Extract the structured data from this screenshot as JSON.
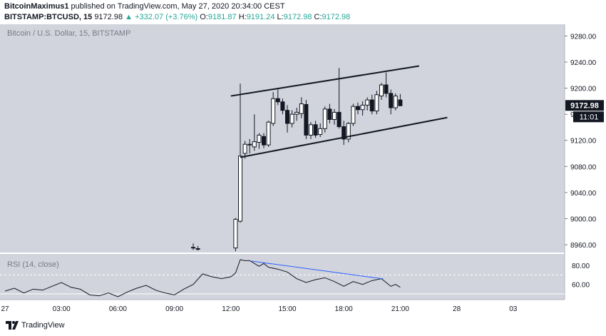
{
  "header": {
    "author": "BitcoinMaximus1",
    "published_text": "published on TradingView.com, May 27, 2020 20:34:00 CEST",
    "symbol": "BITSTAMP:BTCUSD, 15",
    "last_price": "9172.98",
    "change": "+332.07 (+3.76%)",
    "open_label": "O:",
    "open": "9181.87",
    "high_label": "H:",
    "high": "9191.24",
    "low_label": "L:",
    "low": "9172.98",
    "close_label": "C:",
    "close": "9172.98"
  },
  "footer": {
    "brand": "TradingView"
  },
  "colors": {
    "panel_bg": "#d1d4dc",
    "price_badge": "#131722",
    "divergence": "#2962ff",
    "rsi_line": "#131722"
  },
  "chart_data": [
    {
      "type": "candlestick",
      "title": "Bitcoin / U.S. Dollar, 15, BITSTAMP",
      "y_ticks": [
        "9280.00",
        "9240.00",
        "9200.00",
        "9160.00",
        "9120.00",
        "9080.00",
        "9040.00",
        "9000.00",
        "8960.00"
      ],
      "ylim": [
        8948,
        9298
      ],
      "price_label": "9172.98",
      "countdown_label": "11:01",
      "x_ticks": [
        "27",
        "03:00",
        "06:00",
        "09:00",
        "12:00",
        "15:00",
        "18:00",
        "21:00",
        "28",
        "03"
      ],
      "x_tick_hours": [
        0,
        3,
        6,
        9,
        12,
        15,
        18,
        21,
        24,
        27
      ],
      "candles": [
        {
          "t": 10.0,
          "o": 8956,
          "h": 8962,
          "l": 8952,
          "c": 8955
        },
        {
          "t": 10.25,
          "o": 8954,
          "h": 8958,
          "l": 8951,
          "c": 8953
        },
        {
          "t": 12.25,
          "o": 8955,
          "h": 9001,
          "l": 8950,
          "c": 8999
        },
        {
          "t": 12.5,
          "o": 8996,
          "h": 9207,
          "l": 8994,
          "c": 9096
        },
        {
          "t": 12.75,
          "o": 9100,
          "h": 9119,
          "l": 9092,
          "c": 9114
        },
        {
          "t": 13.0,
          "o": 9114,
          "h": 9122,
          "l": 9100,
          "c": 9113
        },
        {
          "t": 13.25,
          "o": 9110,
          "h": 9160,
          "l": 9104,
          "c": 9118
        },
        {
          "t": 13.5,
          "o": 9117,
          "h": 9131,
          "l": 9107,
          "c": 9128
        },
        {
          "t": 13.75,
          "o": 9126,
          "h": 9131,
          "l": 9108,
          "c": 9113
        },
        {
          "t": 14.0,
          "o": 9113,
          "h": 9150,
          "l": 9110,
          "c": 9148
        },
        {
          "t": 14.25,
          "o": 9146,
          "h": 9194,
          "l": 9142,
          "c": 9184
        },
        {
          "t": 14.5,
          "o": 9184,
          "h": 9198,
          "l": 9174,
          "c": 9179
        },
        {
          "t": 14.75,
          "o": 9179,
          "h": 9184,
          "l": 9160,
          "c": 9166
        },
        {
          "t": 15.0,
          "o": 9166,
          "h": 9174,
          "l": 9132,
          "c": 9146
        },
        {
          "t": 15.25,
          "o": 9146,
          "h": 9166,
          "l": 9140,
          "c": 9160
        },
        {
          "t": 15.5,
          "o": 9160,
          "h": 9170,
          "l": 9150,
          "c": 9163
        },
        {
          "t": 15.75,
          "o": 9161,
          "h": 9186,
          "l": 9154,
          "c": 9176
        },
        {
          "t": 16.0,
          "o": 9175,
          "h": 9182,
          "l": 9122,
          "c": 9128
        },
        {
          "t": 16.25,
          "o": 9128,
          "h": 9148,
          "l": 9122,
          "c": 9144
        },
        {
          "t": 16.5,
          "o": 9144,
          "h": 9150,
          "l": 9124,
          "c": 9128
        },
        {
          "t": 16.75,
          "o": 9129,
          "h": 9146,
          "l": 9125,
          "c": 9138
        },
        {
          "t": 17.0,
          "o": 9138,
          "h": 9172,
          "l": 9132,
          "c": 9168
        },
        {
          "t": 17.25,
          "o": 9168,
          "h": 9176,
          "l": 9146,
          "c": 9152
        },
        {
          "t": 17.5,
          "o": 9152,
          "h": 9168,
          "l": 9144,
          "c": 9163
        },
        {
          "t": 17.75,
          "o": 9163,
          "h": 9231,
          "l": 9138,
          "c": 9141
        },
        {
          "t": 18.0,
          "o": 9141,
          "h": 9150,
          "l": 9113,
          "c": 9122
        },
        {
          "t": 18.25,
          "o": 9122,
          "h": 9148,
          "l": 9117,
          "c": 9146
        },
        {
          "t": 18.5,
          "o": 9146,
          "h": 9176,
          "l": 9142,
          "c": 9172
        },
        {
          "t": 18.75,
          "o": 9172,
          "h": 9178,
          "l": 9160,
          "c": 9167
        },
        {
          "t": 19.0,
          "o": 9167,
          "h": 9180,
          "l": 9158,
          "c": 9174
        },
        {
          "t": 19.25,
          "o": 9174,
          "h": 9186,
          "l": 9166,
          "c": 9182
        },
        {
          "t": 19.5,
          "o": 9182,
          "h": 9190,
          "l": 9160,
          "c": 9165
        },
        {
          "t": 19.75,
          "o": 9165,
          "h": 9196,
          "l": 9160,
          "c": 9190
        },
        {
          "t": 20.0,
          "o": 9188,
          "h": 9208,
          "l": 9182,
          "c": 9205
        },
        {
          "t": 20.25,
          "o": 9205,
          "h": 9224,
          "l": 9186,
          "c": 9192
        },
        {
          "t": 20.5,
          "o": 9192,
          "h": 9198,
          "l": 9160,
          "c": 9170
        },
        {
          "t": 20.75,
          "o": 9170,
          "h": 9192,
          "l": 9166,
          "c": 9188
        },
        {
          "t": 21.0,
          "o": 9182,
          "h": 9191,
          "l": 9173,
          "c": 9173
        }
      ],
      "channel": [
        {
          "t1": 12.0,
          "p1": 9188,
          "t2": 22.0,
          "p2": 9234
        },
        {
          "t1": 12.5,
          "p1": 9094,
          "t2": 23.5,
          "p2": 9155
        }
      ]
    },
    {
      "type": "line",
      "title": "RSI (14, close)",
      "y_ticks": [
        "80.00",
        "60.00"
      ],
      "ylim": [
        44,
        92
      ],
      "levels": [
        70,
        50
      ],
      "x": [
        0,
        0.5,
        1,
        1.5,
        2,
        2.5,
        3,
        3.5,
        4,
        4.5,
        5,
        5.5,
        6,
        6.5,
        7,
        7.5,
        8,
        8.5,
        9,
        9.5,
        10,
        10.5,
        11,
        11.5,
        12,
        12.25,
        12.5,
        12.75,
        13,
        13.25,
        13.5,
        13.75,
        14,
        14.5,
        15,
        15.5,
        16,
        16.5,
        17,
        17.5,
        18,
        18.5,
        19,
        19.5,
        20,
        20.25,
        20.5,
        20.75,
        21
      ],
      "values": [
        53,
        56,
        51,
        55,
        54,
        58,
        62,
        57,
        55,
        49,
        48,
        51,
        47,
        52,
        56,
        59,
        54,
        51,
        49,
        55,
        60,
        71,
        68,
        66,
        68,
        72,
        86,
        85,
        85,
        82,
        79,
        82,
        78,
        76,
        73,
        66,
        62,
        65,
        67,
        63,
        58,
        63,
        60,
        64,
        66,
        62,
        58,
        60,
        57
      ],
      "divergence": {
        "x1": 13.1,
        "y1": 84.5,
        "x2": 20.1,
        "y2": 65.8
      }
    }
  ]
}
